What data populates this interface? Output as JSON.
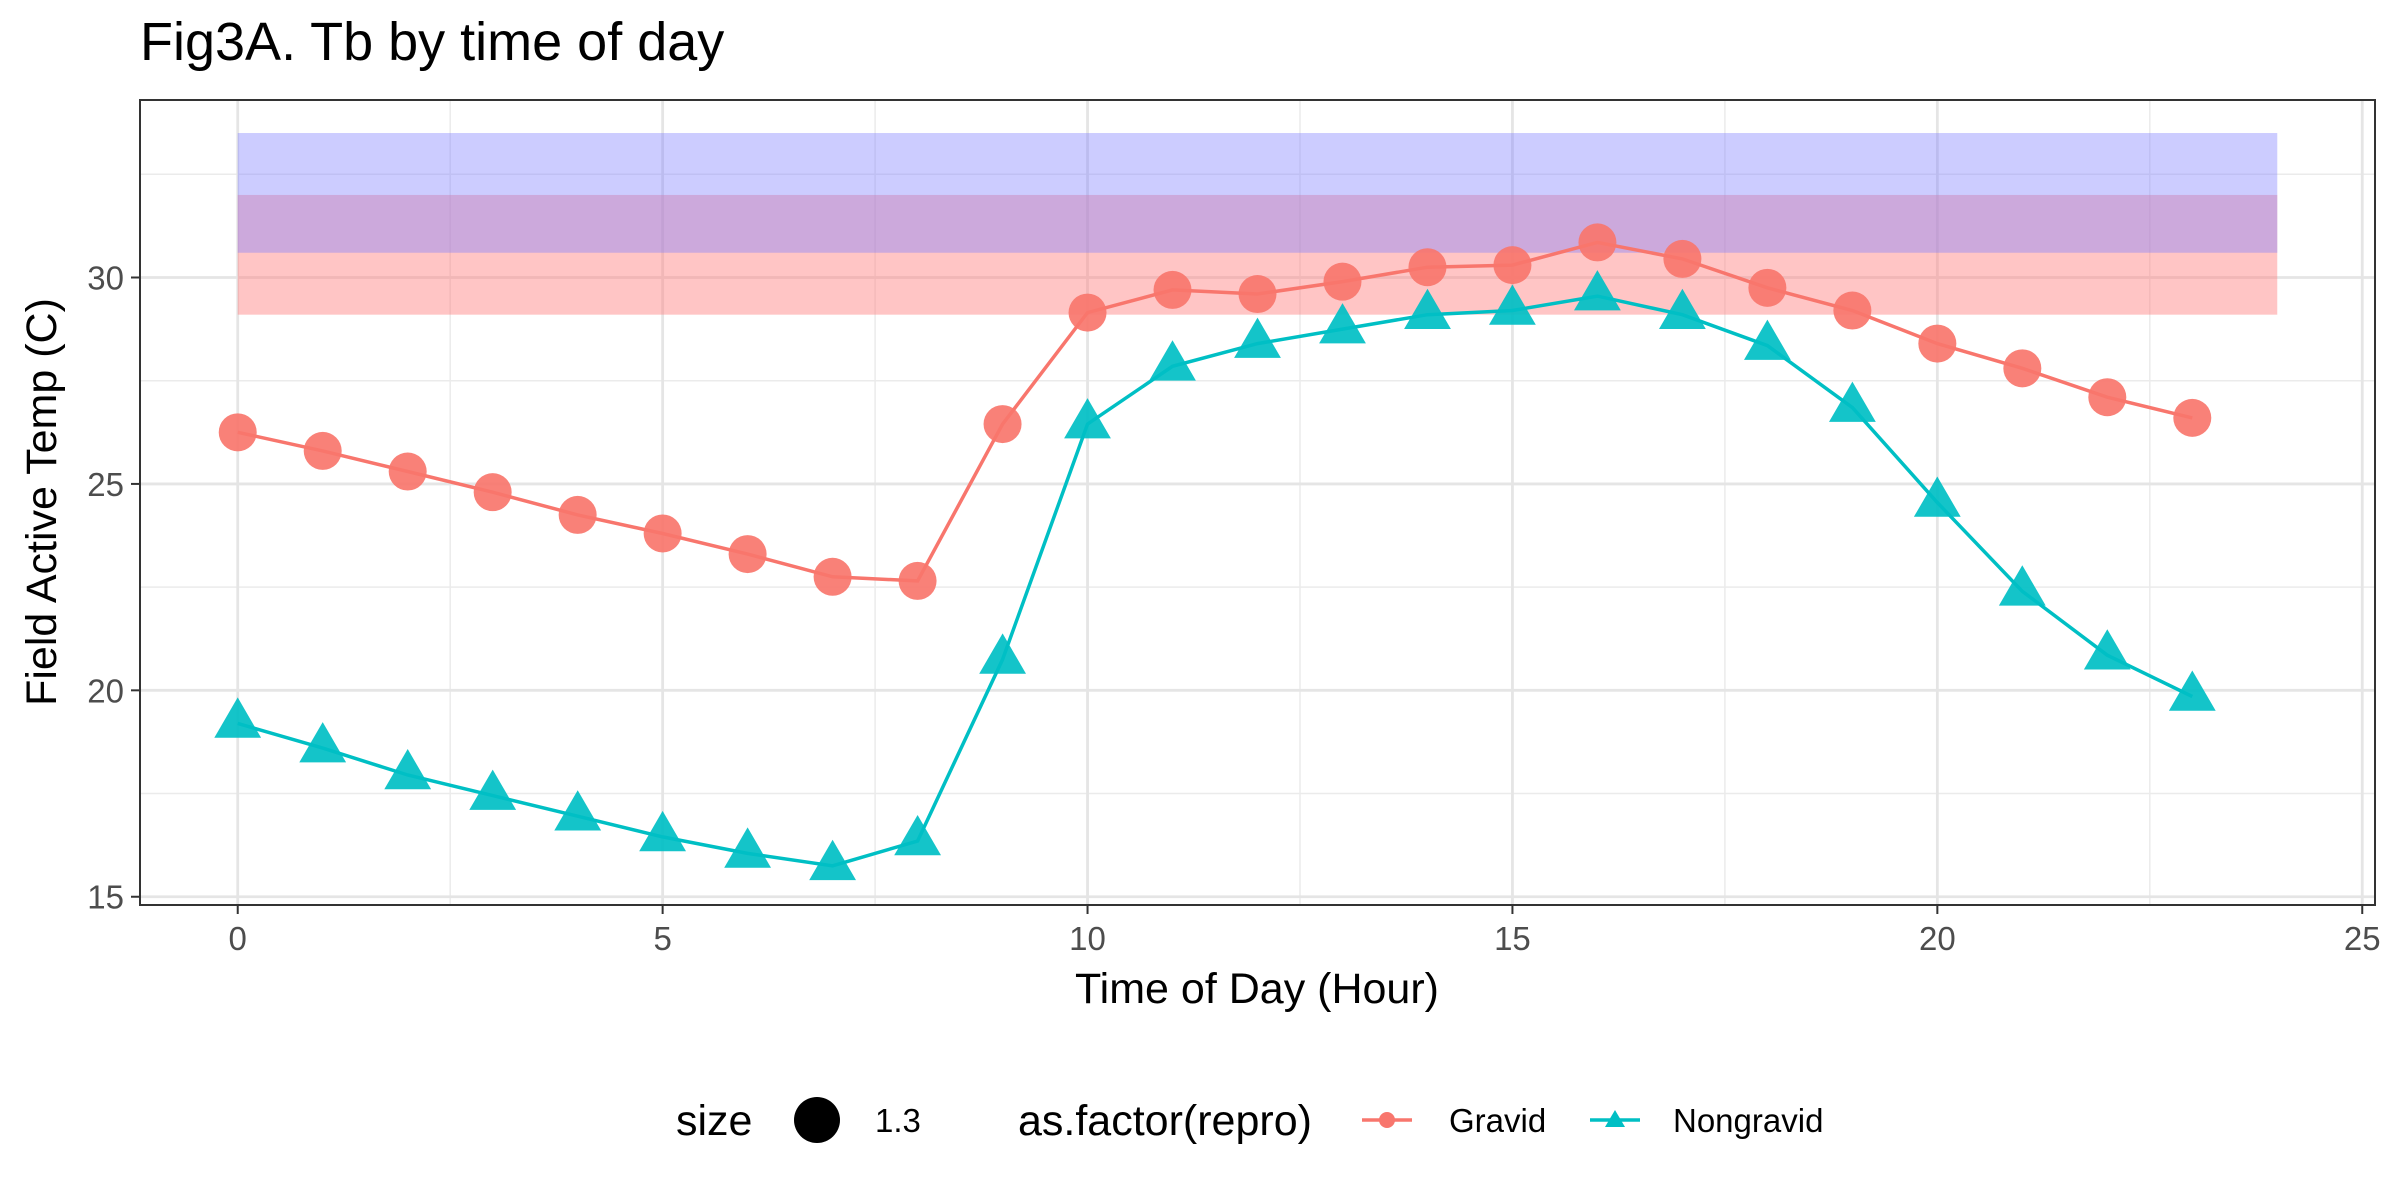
{
  "chart_data": {
    "type": "line",
    "title": "Fig3A. Tb by time of day",
    "xlabel": "Time of Day (Hour)",
    "ylabel": "Field Active Temp (C)",
    "xlim": [
      -1.15,
      25.15
    ],
    "ylim": [
      14.8,
      34.3
    ],
    "xticks": [
      0,
      5,
      10,
      15,
      20,
      25
    ],
    "yticks": [
      15,
      20,
      25,
      30
    ],
    "grid": true,
    "bands": [
      {
        "ymin": 29.1,
        "ymax": 32,
        "x_start": 0,
        "x_end": 24,
        "color": "#ff7f7f",
        "opacity": 0.45
      },
      {
        "ymin": 30.6,
        "ymax": 33.5,
        "x_start": 0,
        "x_end": 24,
        "color": "#7f7fff",
        "opacity": 0.4
      }
    ],
    "series": [
      {
        "name": "Gravid",
        "color": "#F8766D",
        "marker": "circle",
        "x": [
          0,
          1,
          2,
          3,
          4,
          5,
          6,
          7,
          8,
          9,
          10,
          11,
          12,
          13,
          14,
          15,
          16,
          17,
          18,
          19,
          20,
          21,
          22,
          23
        ],
        "values": [
          26.25,
          25.8,
          25.3,
          24.8,
          24.25,
          23.8,
          23.3,
          22.75,
          22.65,
          26.45,
          29.15,
          29.7,
          29.6,
          29.9,
          30.25,
          30.3,
          30.85,
          30.45,
          29.75,
          29.2,
          28.4,
          27.8,
          27.1,
          26.6
        ]
      },
      {
        "name": "Nongravid",
        "color": "#00BFC4",
        "marker": "triangle",
        "x": [
          0,
          1,
          2,
          3,
          4,
          5,
          6,
          7,
          8,
          9,
          10,
          11,
          12,
          13,
          14,
          15,
          16,
          17,
          18,
          19,
          20,
          21,
          22,
          23
        ],
        "values": [
          19.2,
          18.6,
          17.95,
          17.45,
          16.95,
          16.45,
          16.05,
          15.75,
          16.35,
          20.75,
          26.45,
          27.85,
          28.4,
          28.75,
          29.1,
          29.2,
          29.55,
          29.1,
          28.35,
          26.85,
          24.55,
          22.4,
          20.85,
          19.85
        ]
      }
    ],
    "legend": {
      "position": "bottom",
      "size_title": "size",
      "size_value": "1.3",
      "color_title": "as.factor(repro)",
      "entries": [
        "Gravid",
        "Nongravid"
      ]
    }
  }
}
